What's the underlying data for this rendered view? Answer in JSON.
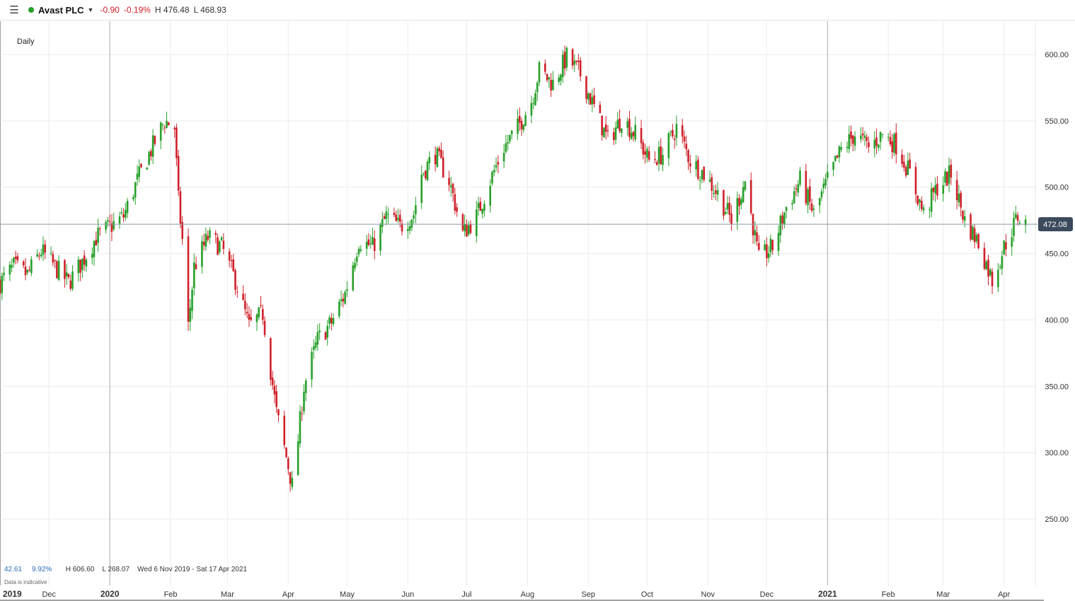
{
  "header": {
    "menu_icon": "hamburger-menu-icon",
    "symbol": "Avast PLC",
    "change": "-0.90",
    "change_pct": "-0.19%",
    "high": "H 476.48",
    "low": "L 468.93"
  },
  "interval_label": "Daily",
  "colors": {
    "up": "#27a02a",
    "down": "#d0202a",
    "last_price_tag": "#3b4a5c"
  },
  "footer": {
    "value_1": "42.61",
    "value_2": "9.92%",
    "range_high": "H 606.60",
    "range_low": "L 268.07",
    "date_range": "Wed 6 Nov 2019 - Sat 17 Apr 2021",
    "disclaimer": "Data is indicative"
  },
  "chart_data": {
    "type": "candlestick",
    "y_axis": {
      "ticks": [
        250,
        300,
        350,
        400,
        450,
        500,
        550,
        600
      ],
      "tick_labels": [
        "250.00",
        "300.00",
        "350.00",
        "400.00",
        "450.00",
        "500.00",
        "550.00",
        "600.00"
      ],
      "range": [
        200,
        625
      ],
      "position": "right"
    },
    "x_axis": {
      "range": [
        "2019-11-06",
        "2021-04-17"
      ],
      "ticks": [
        {
          "label": "2019",
          "date": "2019-11-01",
          "major": true
        },
        {
          "label": "Dec",
          "date": "2019-12-01",
          "major": false
        },
        {
          "label": "2020",
          "date": "2020-01-01",
          "major": true
        },
        {
          "label": "Feb",
          "date": "2020-02-01",
          "major": false
        },
        {
          "label": "Mar",
          "date": "2020-03-01",
          "major": false
        },
        {
          "label": "Apr",
          "date": "2020-04-01",
          "major": false
        },
        {
          "label": "May",
          "date": "2020-05-01",
          "major": false
        },
        {
          "label": "Jun",
          "date": "2020-06-01",
          "major": false
        },
        {
          "label": "Jul",
          "date": "2020-07-01",
          "major": false
        },
        {
          "label": "Aug",
          "date": "2020-08-01",
          "major": false
        },
        {
          "label": "Sep",
          "date": "2020-09-01",
          "major": false
        },
        {
          "label": "Oct",
          "date": "2020-10-01",
          "major": false
        },
        {
          "label": "Nov",
          "date": "2020-11-01",
          "major": false
        },
        {
          "label": "Dec",
          "date": "2020-12-01",
          "major": false
        },
        {
          "label": "2021",
          "date": "2021-01-01",
          "major": true
        },
        {
          "label": "Feb",
          "date": "2021-02-01",
          "major": false
        },
        {
          "label": "Mar",
          "date": "2021-03-01",
          "major": false
        },
        {
          "label": "Apr",
          "date": "2021-04-01",
          "major": false
        }
      ]
    },
    "last_price": 472.08,
    "last_price_label": "472.08",
    "grid": true,
    "close_path": [
      [
        "2019-11-06",
        428
      ],
      [
        "2019-11-13",
        440
      ],
      [
        "2019-11-20",
        434
      ],
      [
        "2019-11-27",
        452
      ],
      [
        "2019-12-04",
        440
      ],
      [
        "2019-12-11",
        428
      ],
      [
        "2019-12-18",
        444
      ],
      [
        "2019-12-25",
        462
      ],
      [
        "2020-01-01",
        470
      ],
      [
        "2020-01-08",
        478
      ],
      [
        "2020-01-15",
        505
      ],
      [
        "2020-01-22",
        528
      ],
      [
        "2020-01-29",
        550
      ],
      [
        "2020-02-03",
        545
      ],
      [
        "2020-02-05",
        490
      ],
      [
        "2020-02-07",
        460
      ],
      [
        "2020-02-10",
        395
      ],
      [
        "2020-02-13",
        440
      ],
      [
        "2020-02-20",
        462
      ],
      [
        "2020-02-27",
        455
      ],
      [
        "2020-03-05",
        430
      ],
      [
        "2020-03-12",
        395
      ],
      [
        "2020-03-19",
        405
      ],
      [
        "2020-03-26",
        330
      ],
      [
        "2020-04-01",
        290
      ],
      [
        "2020-04-03",
        275
      ],
      [
        "2020-04-06",
        310
      ],
      [
        "2020-04-09",
        350
      ],
      [
        "2020-04-16",
        385
      ],
      [
        "2020-04-23",
        398
      ],
      [
        "2020-04-30",
        420
      ],
      [
        "2020-05-07",
        460
      ],
      [
        "2020-05-14",
        455
      ],
      [
        "2020-05-21",
        478
      ],
      [
        "2020-05-28",
        470
      ],
      [
        "2020-06-04",
        480
      ],
      [
        "2020-06-08",
        510
      ],
      [
        "2020-06-15",
        525
      ],
      [
        "2020-06-22",
        505
      ],
      [
        "2020-06-29",
        465
      ],
      [
        "2020-07-06",
        478
      ],
      [
        "2020-07-13",
        505
      ],
      [
        "2020-07-20",
        530
      ],
      [
        "2020-07-27",
        545
      ],
      [
        "2020-08-03",
        565
      ],
      [
        "2020-08-07",
        588
      ],
      [
        "2020-08-14",
        578
      ],
      [
        "2020-08-21",
        598
      ],
      [
        "2020-08-28",
        585
      ],
      [
        "2020-09-04",
        560
      ],
      [
        "2020-09-11",
        535
      ],
      [
        "2020-09-18",
        552
      ],
      [
        "2020-09-25",
        540
      ],
      [
        "2020-10-02",
        520
      ],
      [
        "2020-10-09",
        525
      ],
      [
        "2020-10-16",
        545
      ],
      [
        "2020-10-23",
        520
      ],
      [
        "2020-10-30",
        510
      ],
      [
        "2020-11-06",
        495
      ],
      [
        "2020-11-13",
        475
      ],
      [
        "2020-11-20",
        505
      ],
      [
        "2020-11-27",
        445
      ],
      [
        "2020-12-04",
        455
      ],
      [
        "2020-12-11",
        485
      ],
      [
        "2020-12-18",
        505
      ],
      [
        "2020-12-25",
        480
      ],
      [
        "2021-01-01",
        505
      ],
      [
        "2021-01-08",
        528
      ],
      [
        "2021-01-15",
        540
      ],
      [
        "2021-01-22",
        530
      ],
      [
        "2021-01-29",
        540
      ],
      [
        "2021-02-05",
        532
      ],
      [
        "2021-02-12",
        510
      ],
      [
        "2021-02-19",
        480
      ],
      [
        "2021-02-26",
        500
      ],
      [
        "2021-03-05",
        510
      ],
      [
        "2021-03-12",
        475
      ],
      [
        "2021-03-19",
        458
      ],
      [
        "2021-03-26",
        430
      ],
      [
        "2021-04-01",
        455
      ],
      [
        "2021-04-08",
        478
      ],
      [
        "2021-04-12",
        472
      ]
    ]
  }
}
